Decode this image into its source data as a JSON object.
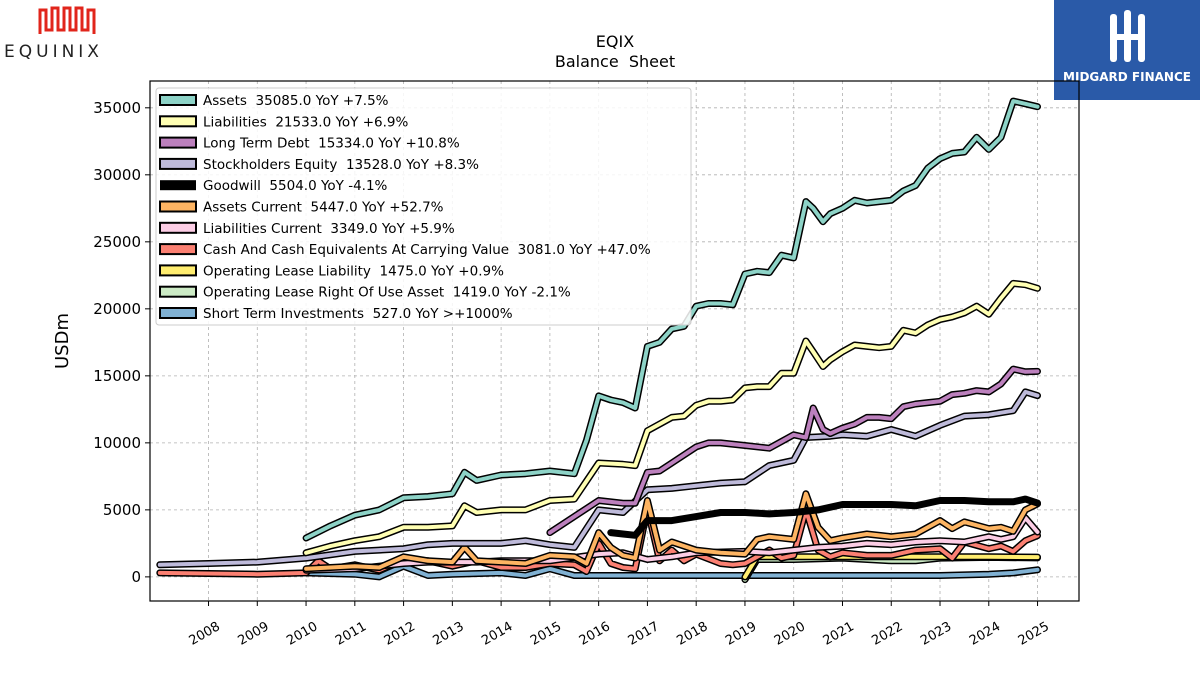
{
  "brand": {
    "left_logo_text": "EQUINIX",
    "right_logo_text": "MIDGARD FINANCE",
    "left_logo_color": "#e1251b",
    "right_logo_bg": "#2a5aa8"
  },
  "chart_data": {
    "type": "line",
    "title": "EQIX",
    "subtitle": "Balance  Sheet",
    "ylabel": "USDm",
    "xlabel": "",
    "ylim": [
      -1800,
      37000
    ],
    "xlim": [
      2006.8,
      2025.85
    ],
    "yticks": [
      0,
      5000,
      10000,
      15000,
      20000,
      25000,
      30000,
      35000
    ],
    "xticks": [
      "2008",
      "2009",
      "2010",
      "2011",
      "2012",
      "2013",
      "2014",
      "2015",
      "2016",
      "2017",
      "2018",
      "2019",
      "2020",
      "2021",
      "2022",
      "2023",
      "2024",
      "2025"
    ],
    "grid": true,
    "legend_position": "top-left",
    "series": [
      {
        "name": "Assets  35085.0 YoY +7.5%",
        "color": "#8dd3c7",
        "x": [
          2010,
          2010.5,
          2011,
          2011.5,
          2012,
          2012.5,
          2013,
          2013.25,
          2013.5,
          2014,
          2014.5,
          2015,
          2015.5,
          2015.75,
          2016,
          2016.25,
          2016.5,
          2016.75,
          2017,
          2017.25,
          2017.5,
          2017.75,
          2018,
          2018.25,
          2018.5,
          2018.75,
          2019,
          2019.25,
          2019.5,
          2019.75,
          2020,
          2020.25,
          2020.4,
          2020.6,
          2020.75,
          2021,
          2021.25,
          2021.5,
          2021.75,
          2022,
          2022.25,
          2022.5,
          2022.75,
          2023,
          2023.25,
          2023.5,
          2023.75,
          2024,
          2024.25,
          2024.5,
          2024.75,
          2025
        ],
        "y": [
          2900,
          3800,
          4600,
          5000,
          5900,
          6000,
          6200,
          7800,
          7200,
          7600,
          7700,
          7900,
          7700,
          10200,
          13500,
          13200,
          13000,
          12600,
          17200,
          17500,
          18500,
          18700,
          20200,
          20400,
          20400,
          20300,
          22600,
          22800,
          22700,
          24000,
          23800,
          28000,
          27500,
          26500,
          27100,
          27500,
          28100,
          27900,
          28000,
          28100,
          28800,
          29200,
          30500,
          31200,
          31600,
          31700,
          32800,
          31900,
          32800,
          35500,
          35300,
          35085
        ]
      },
      {
        "name": "Liabilities  21533.0 YoY +6.9%",
        "color": "#ffffb3",
        "x": [
          2010,
          2010.5,
          2011,
          2011.5,
          2012,
          2012.5,
          2013,
          2013.25,
          2013.5,
          2014,
          2014.5,
          2015,
          2015.5,
          2016,
          2016.5,
          2016.75,
          2017,
          2017.5,
          2017.75,
          2018,
          2018.25,
          2018.5,
          2018.75,
          2019,
          2019.25,
          2019.5,
          2019.75,
          2020,
          2020.25,
          2020.4,
          2020.6,
          2020.75,
          2021,
          2021.25,
          2021.5,
          2021.75,
          2022,
          2022.25,
          2022.5,
          2022.75,
          2023,
          2023.25,
          2023.5,
          2023.75,
          2024,
          2024.25,
          2024.5,
          2024.75,
          2025
        ],
        "y": [
          1800,
          2300,
          2700,
          3000,
          3700,
          3700,
          3800,
          5300,
          4800,
          5000,
          5000,
          5700,
          5800,
          8500,
          8400,
          8300,
          10900,
          11900,
          12000,
          12800,
          13100,
          13100,
          13200,
          14100,
          14200,
          14200,
          15200,
          15200,
          17600,
          16800,
          15700,
          16200,
          16800,
          17300,
          17200,
          17100,
          17200,
          18400,
          18200,
          18800,
          19200,
          19400,
          19700,
          20200,
          19600,
          20800,
          21900,
          21800,
          21533
        ]
      },
      {
        "name": "Long Term Debt  15334.0 YoY +10.8%",
        "color": "#bc80bd",
        "x": [
          2015,
          2016,
          2016.5,
          2016.75,
          2017,
          2017.25,
          2017.5,
          2018,
          2018.25,
          2018.5,
          2019,
          2019.5,
          2020,
          2020.25,
          2020.4,
          2020.6,
          2020.75,
          2021,
          2021.25,
          2021.5,
          2021.75,
          2022,
          2022.25,
          2022.5,
          2022.75,
          2023,
          2023.25,
          2023.5,
          2023.75,
          2024,
          2024.25,
          2024.5,
          2024.75,
          2025
        ],
        "y": [
          3300,
          5700,
          5500,
          5500,
          7800,
          7900,
          8500,
          9700,
          10000,
          10000,
          9800,
          9600,
          10600,
          10400,
          12600,
          11000,
          10700,
          11100,
          11400,
          11900,
          11900,
          11800,
          12700,
          12900,
          13000,
          13100,
          13600,
          13700,
          13900,
          13800,
          14400,
          15500,
          15300,
          15334
        ]
      },
      {
        "name": "Stockholders Equity  13528.0 YoY +8.3%",
        "color": "#bebada",
        "x": [
          2007,
          2008,
          2009,
          2010,
          2011,
          2011.5,
          2012,
          2012.5,
          2013,
          2014,
          2014.5,
          2015,
          2015.5,
          2016,
          2016.5,
          2017,
          2017.5,
          2018,
          2018.5,
          2019,
          2019.5,
          2020,
          2020.25,
          2020.75,
          2021,
          2021.5,
          2022,
          2022.5,
          2023,
          2023.5,
          2024,
          2024.5,
          2024.75,
          2025
        ],
        "y": [
          900,
          1000,
          1100,
          1400,
          1900,
          2000,
          2100,
          2400,
          2500,
          2500,
          2700,
          2400,
          2200,
          5000,
          4800,
          6500,
          6600,
          6800,
          7000,
          7100,
          8300,
          8700,
          10400,
          10500,
          10600,
          10500,
          11000,
          10500,
          11300,
          12000,
          12100,
          12400,
          13800,
          13528
        ]
      },
      {
        "name": "Goodwill  5504.0 YoY -4.1%",
        "color": "#000000",
        "x": [
          2016.25,
          2016.5,
          2016.75,
          2017,
          2017.5,
          2018,
          2018.5,
          2019,
          2019.5,
          2020,
          2020.5,
          2021,
          2021.5,
          2022,
          2022.5,
          2023,
          2023.5,
          2024,
          2024.5,
          2024.75,
          2025
        ],
        "y": [
          3300,
          3200,
          3100,
          4200,
          4200,
          4500,
          4800,
          4800,
          4700,
          4800,
          5000,
          5400,
          5400,
          5400,
          5300,
          5700,
          5700,
          5600,
          5600,
          5800,
          5504
        ]
      },
      {
        "name": "Assets Current  5447.0 YoY +52.7%",
        "color": "#fdb462",
        "x": [
          2010,
          2011,
          2011.5,
          2012,
          2012.5,
          2013,
          2013.25,
          2013.5,
          2014,
          2014.5,
          2015,
          2015.5,
          2015.75,
          2016,
          2016.25,
          2016.5,
          2016.75,
          2017,
          2017.25,
          2017.5,
          2018,
          2018.5,
          2019,
          2019.25,
          2019.5,
          2020,
          2020.25,
          2020.5,
          2020.75,
          2021,
          2021.5,
          2022,
          2022.5,
          2023,
          2023.25,
          2023.5,
          2024,
          2024.25,
          2024.5,
          2024.75,
          2025
        ],
        "y": [
          600,
          800,
          700,
          1500,
          1200,
          1100,
          2200,
          1200,
          1100,
          1000,
          1600,
          1500,
          1000,
          3300,
          2200,
          1600,
          1400,
          5700,
          2000,
          2600,
          2000,
          1800,
          1700,
          2800,
          3000,
          2800,
          6200,
          3700,
          2700,
          2900,
          3200,
          3000,
          3200,
          4200,
          3600,
          4100,
          3600,
          3700,
          3400,
          5000,
          5447
        ]
      },
      {
        "name": "Liabilities Current  3349.0 YoY +5.9%",
        "color": "#fccde5",
        "x": [
          2010,
          2011,
          2012,
          2012.5,
          2013,
          2013.5,
          2014,
          2015,
          2016,
          2016.5,
          2017,
          2017.5,
          2018,
          2019,
          2019.5,
          2020,
          2020.5,
          2021,
          2021.5,
          2022,
          2022.5,
          2023,
          2023.5,
          2024,
          2024.25,
          2024.5,
          2024.75,
          2025
        ],
        "y": [
          500,
          600,
          1000,
          1100,
          1100,
          1100,
          1200,
          1200,
          1700,
          1800,
          1300,
          1500,
          1800,
          1900,
          1800,
          2000,
          2200,
          2300,
          2500,
          2400,
          2600,
          2700,
          2600,
          3000,
          2800,
          3000,
          4400,
          3349
        ]
      },
      {
        "name": "Cash And Cash Equivalents At Carrying Value  3081.0 YoY +47.0%",
        "color": "#fb8072",
        "x": [
          2007,
          2008,
          2009,
          2010,
          2010.25,
          2010.5,
          2011,
          2011.5,
          2012,
          2012.5,
          2013,
          2013.5,
          2014,
          2014.5,
          2015,
          2015.5,
          2015.75,
          2016,
          2016.25,
          2016.5,
          2016.75,
          2017,
          2017.25,
          2017.5,
          2017.75,
          2018,
          2018.5,
          2018.75,
          2019,
          2019.5,
          2019.75,
          2020,
          2020.25,
          2020.5,
          2020.75,
          2021,
          2021.5,
          2022,
          2022.5,
          2023,
          2023.25,
          2023.5,
          2024,
          2024.25,
          2024.5,
          2024.75,
          2025
        ],
        "y": [
          300,
          250,
          200,
          300,
          1200,
          600,
          900,
          500,
          1300,
          1200,
          800,
          1200,
          700,
          700,
          1000,
          900,
          400,
          2500,
          1000,
          700,
          600,
          5100,
          1200,
          2000,
          1200,
          1700,
          1000,
          900,
          1000,
          2000,
          1400,
          1600,
          5000,
          2000,
          1500,
          1800,
          1600,
          1600,
          2000,
          2100,
          1400,
          2600,
          2100,
          2300,
          1900,
          2700,
          3081
        ]
      },
      {
        "name": "Operating Lease Liability  1475.0 YoY +0.9%",
        "color": "#ffed6f",
        "x": [
          2019,
          2019.25,
          2020,
          2021,
          2022,
          2023,
          2024,
          2025
        ],
        "y": [
          0,
          1500,
          1500,
          1500,
          1500,
          1500,
          1500,
          1475
        ]
      },
      {
        "name": "Operating Lease Right Of Use Asset  1419.0 YoY -2.1%",
        "color": "#ccebc5",
        "x": [
          2019,
          2019.25,
          2020,
          2021,
          2022,
          2022.5,
          2023,
          2024,
          2025
        ],
        "y": [
          -200,
          1300,
          1300,
          1400,
          1200,
          1200,
          1400,
          1450,
          1419
        ]
      },
      {
        "name": "Short Term Investments  527.0 YoY >+1000%",
        "color": "#80b1d3",
        "x": [
          2010,
          2011,
          2011.5,
          2012,
          2012.5,
          2013,
          2014,
          2014.5,
          2015,
          2015.5,
          2016,
          2017,
          2018,
          2019,
          2020,
          2021,
          2022,
          2023,
          2024,
          2024.5,
          2025
        ],
        "y": [
          300,
          200,
          0,
          800,
          100,
          200,
          300,
          100,
          600,
          100,
          100,
          100,
          100,
          100,
          100,
          100,
          100,
          100,
          200,
          300,
          527
        ]
      }
    ]
  }
}
